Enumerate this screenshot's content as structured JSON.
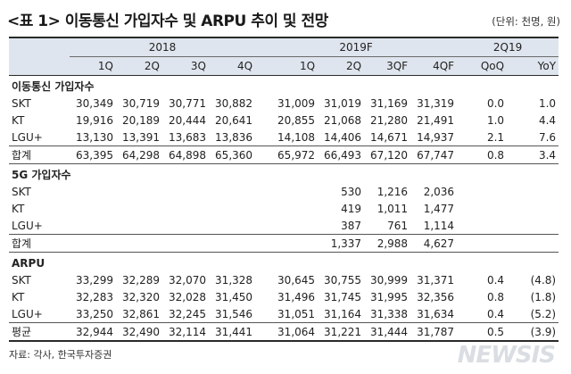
{
  "title": "<표 1> 이동통신 가입자수 및 ARPU 추이 및 전망",
  "unit": "(단위: 천명, 원)",
  "header": {
    "groups": [
      "2018",
      "2019F",
      "2Q19"
    ],
    "periods": [
      "1Q",
      "2Q",
      "3Q",
      "4Q",
      "1Q",
      "2Q",
      "3QF",
      "4QF",
      "QoQ",
      "YoY"
    ]
  },
  "sections": [
    {
      "title": "이동통신 가입자수",
      "rows": [
        {
          "label": "SKT",
          "values": [
            "30,349",
            "30,719",
            "30,771",
            "30,882",
            "31,009",
            "31,019",
            "31,169",
            "31,319",
            "0.0",
            "1.0"
          ]
        },
        {
          "label": "KT",
          "values": [
            "19,916",
            "20,189",
            "20,444",
            "20,641",
            "20,855",
            "21,068",
            "21,280",
            "21,491",
            "1.0",
            "4.4"
          ]
        },
        {
          "label": "LGU+",
          "values": [
            "13,130",
            "13,391",
            "13,683",
            "13,836",
            "14,108",
            "14,406",
            "14,671",
            "14,937",
            "2.1",
            "7.6"
          ]
        }
      ],
      "total": {
        "label": "합계",
        "values": [
          "63,395",
          "64,298",
          "64,898",
          "65,360",
          "65,972",
          "66,493",
          "67,120",
          "67,747",
          "0.8",
          "3.4"
        ]
      }
    },
    {
      "title": "5G 가입자수",
      "rows": [
        {
          "label": "SKT",
          "values": [
            "",
            "",
            "",
            "",
            "",
            "530",
            "1,216",
            "2,036",
            "",
            ""
          ]
        },
        {
          "label": "KT",
          "values": [
            "",
            "",
            "",
            "",
            "",
            "419",
            "1,011",
            "1,477",
            "",
            ""
          ]
        },
        {
          "label": "LGU+",
          "values": [
            "",
            "",
            "",
            "",
            "",
            "387",
            "761",
            "1,114",
            "",
            ""
          ]
        }
      ],
      "total": {
        "label": "합계",
        "values": [
          "",
          "",
          "",
          "",
          "",
          "1,337",
          "2,988",
          "4,627",
          "",
          ""
        ]
      }
    },
    {
      "title": "ARPU",
      "rows": [
        {
          "label": "SKT",
          "values": [
            "33,299",
            "32,289",
            "32,070",
            "31,328",
            "30,645",
            "30,755",
            "30,999",
            "31,371",
            "0.4",
            "(4.8)"
          ]
        },
        {
          "label": "KT",
          "values": [
            "32,283",
            "32,320",
            "32,028",
            "31,450",
            "31,496",
            "31,745",
            "31,995",
            "32,356",
            "0.8",
            "(1.8)"
          ]
        },
        {
          "label": "LGU+",
          "values": [
            "33,250",
            "32,861",
            "32,245",
            "31,546",
            "31,051",
            "31,164",
            "31,338",
            "31,634",
            "0.4",
            "(5.2)"
          ]
        }
      ],
      "total": {
        "label": "평균",
        "values": [
          "32,944",
          "32,490",
          "32,114",
          "31,441",
          "31,064",
          "31,221",
          "31,444",
          "31,787",
          "0.5",
          "(3.9)"
        ]
      }
    }
  ],
  "source": "자료: 각사, 한국투자증권",
  "watermark": "NEWSIS"
}
